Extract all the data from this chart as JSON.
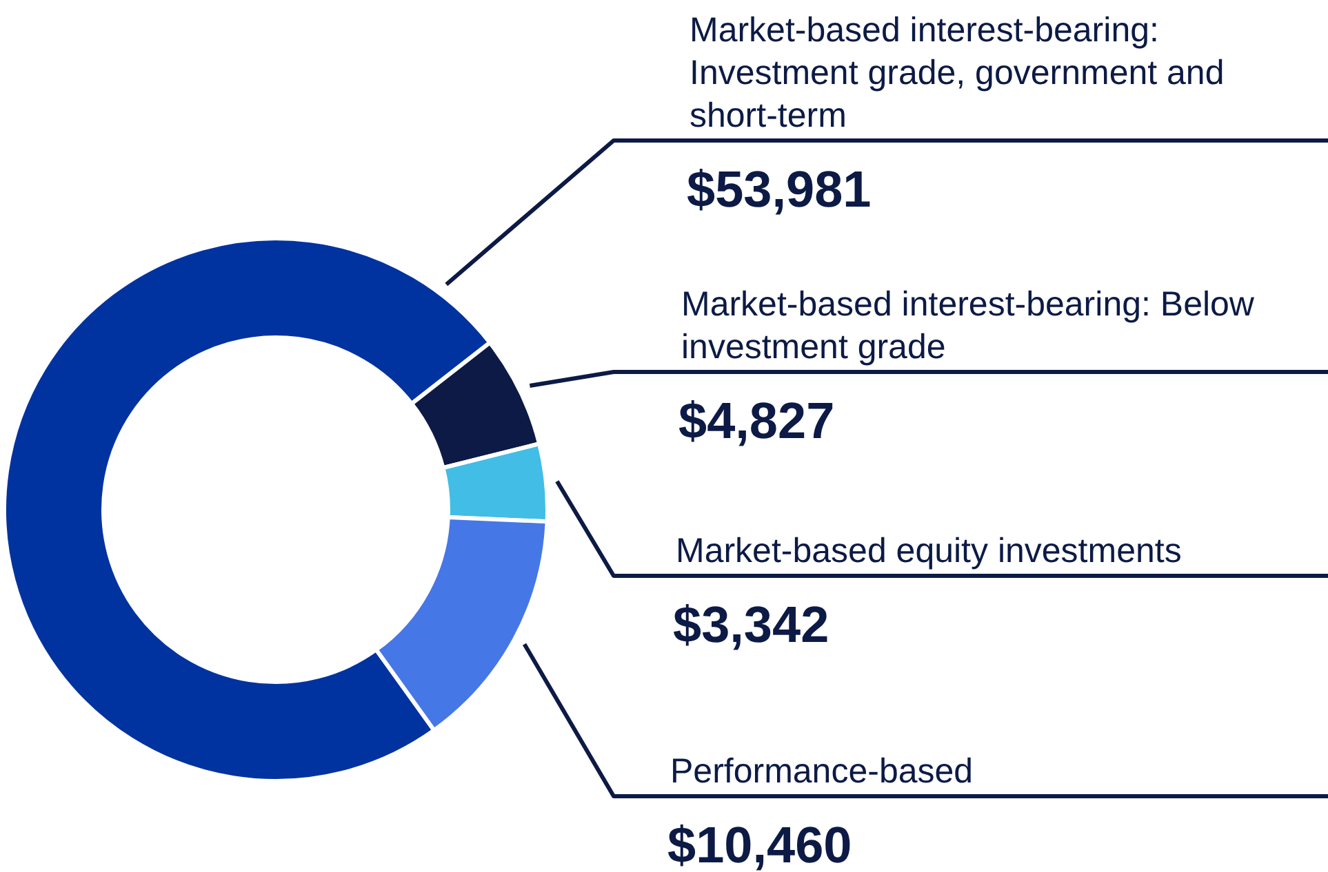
{
  "chart_data": {
    "type": "donut",
    "categories": [
      "Market-based interest-bearing: Investment grade, government and short-term",
      "Market-based interest-bearing: Below investment grade",
      "Market-based equity investments",
      "Performance-based"
    ],
    "values": [
      53981,
      4827,
      3342,
      10460
    ],
    "colors": [
      "#0033a0",
      "#0c1a45",
      "#41bde6",
      "#4677e6"
    ],
    "value_labels": [
      "$53,981",
      "$4,827",
      "$3,342",
      "$10,460"
    ]
  }
}
